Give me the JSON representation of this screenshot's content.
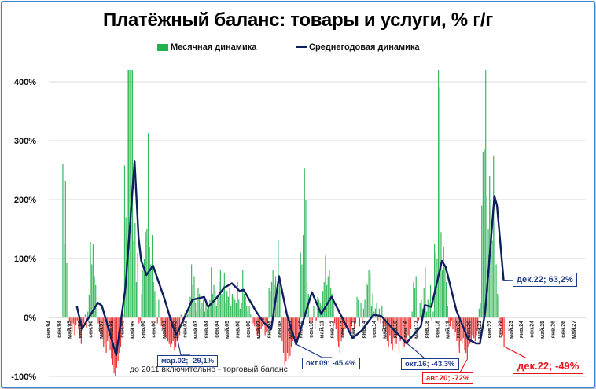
{
  "chart_data": {
    "type": "bar+line",
    "title": "Платёжный баланс: товары и услуги, % г/г",
    "ylim": [
      -100,
      420
    ],
    "yticks": [
      -100,
      0,
      100,
      200,
      300,
      400
    ],
    "ytick_labels": [
      "-100%",
      "0%",
      "100%",
      "200%",
      "300%",
      "400%"
    ],
    "grid": true,
    "legend_position": "top-center",
    "legend": [
      "Месячная динамика",
      "Среднегодовая динамика"
    ],
    "x_start": "1994-01",
    "x_end": "2027-06",
    "xtick_labels": [
      "янв.94",
      "сен.94",
      "май.95",
      "янв.96",
      "сен.96",
      "май.97",
      "янв.98",
      "сен.98",
      "май.99",
      "янв.00",
      "сен.00",
      "май.01",
      "янв.02",
      "сен.02",
      "май.03",
      "янв.04",
      "сен.04",
      "май.05",
      "янв.06",
      "сен.06",
      "май.07",
      "янв.08",
      "сен.08",
      "май.09",
      "янв.10",
      "сен.10",
      "май.11",
      "янв.12",
      "сен.12",
      "май.13",
      "янв.14",
      "сен.14",
      "май.15",
      "янв.16",
      "сен.16",
      "май.17",
      "янв.18",
      "сен.18",
      "май.19",
      "янв.20",
      "сен.20",
      "май.21",
      "янв.22",
      "сен.22",
      "май.23",
      "янв.24",
      "сен.24",
      "май.25",
      "янв.26",
      "сен.26",
      "май.27"
    ],
    "series": [
      {
        "name": "Месячная динамика",
        "kind": "bar",
        "color_pos": "#22b24c",
        "color_neg": "#f01c1c",
        "monthly_by_year": {
          "1994": [
            0,
            0,
            0,
            0,
            0,
            0,
            0,
            0,
            0,
            0,
            0,
            260
          ],
          "1995": [
            125,
            232,
            92,
            0,
            -8,
            -15,
            -25,
            -10,
            -30,
            -12,
            -5,
            -20
          ],
          "1996": [
            -35,
            -45,
            -20,
            -10,
            5,
            -18,
            10,
            38,
            128,
            90,
            125,
            70
          ],
          "1997": [
            55,
            15,
            -10,
            -25,
            -40,
            -30,
            -50,
            -45,
            -60,
            -40,
            -35,
            -55
          ],
          "1998": [
            -70,
            -80,
            -95,
            -100,
            -85,
            -75,
            -60,
            -50,
            -20,
            5,
            258,
            170
          ],
          "1999": [
            420,
            420,
            420,
            420,
            420,
            130,
            160,
            60,
            110,
            -10,
            -5,
            40
          ],
          "2000": [
            80,
            100,
            145,
            150,
            313,
            120,
            90,
            140,
            60,
            45,
            30,
            -10
          ],
          "2001": [
            30,
            -5,
            -15,
            -20,
            -25,
            -30,
            -35,
            -40,
            -45,
            -50,
            -45,
            -40
          ],
          "2002": [
            -55,
            -50,
            -40,
            -35,
            -30,
            5,
            -10,
            2,
            8,
            10,
            5,
            20
          ],
          "2003": [
            35,
            90,
            55,
            70,
            25,
            10,
            50,
            40,
            15,
            25,
            30,
            10
          ],
          "2004": [
            25,
            15,
            20,
            30,
            85,
            40,
            55,
            45,
            20,
            35,
            60,
            80
          ],
          "2005": [
            40,
            55,
            75,
            25,
            45,
            35,
            50,
            20,
            40,
            35,
            30,
            25
          ],
          "2006": [
            60,
            30,
            15,
            25,
            80,
            40,
            35,
            20,
            10,
            20,
            5,
            2
          ],
          "2007": [
            -10,
            -15,
            -20,
            -30,
            -25,
            -35,
            -20,
            -15,
            -5,
            -30,
            -25,
            -10
          ],
          "2008": [
            50,
            45,
            60,
            80,
            55,
            70,
            40,
            130,
            65,
            50,
            -40,
            -60
          ],
          "2009": [
            -80,
            -75,
            -60,
            -70,
            -65,
            -50,
            -40,
            -30,
            -35,
            -45,
            -30,
            -20
          ],
          "2010": [
            110,
            90,
            140,
            253,
            200,
            60,
            40,
            -10,
            -15,
            -5,
            20,
            -20
          ],
          "2011": [
            -5,
            35,
            30,
            25,
            20,
            45,
            60,
            105,
            55,
            70,
            80,
            50
          ],
          "2012": [
            40,
            30,
            -10,
            -20,
            -40,
            -50,
            -60,
            -40,
            -30,
            -35,
            -20,
            -15
          ],
          "2013": [
            -10,
            -25,
            -30,
            -15,
            -5,
            -20,
            -10,
            35,
            30,
            -15,
            25,
            -10
          ],
          "2014": [
            15,
            30,
            60,
            55,
            80,
            75,
            20,
            40,
            10,
            15,
            25,
            -5
          ],
          "2015": [
            15,
            -10,
            20,
            -20,
            -15,
            -25,
            -40,
            -50,
            -30,
            -45,
            -55,
            -35
          ],
          "2016": [
            -50,
            -45,
            -30,
            -60,
            -40,
            -35,
            -55,
            -50,
            -45,
            -40,
            -30,
            -35
          ],
          "2017": [
            -20,
            10,
            60,
            50,
            70,
            -10,
            -5,
            25,
            30,
            15,
            50,
            85
          ],
          "2018": [
            10,
            30,
            25,
            55,
            -5,
            10,
            125,
            110,
            100,
            420,
            390,
            145
          ],
          "2019": [
            80,
            120,
            90,
            60,
            20,
            -10,
            -15,
            -5,
            -20,
            -30,
            -25,
            -40
          ],
          "2020": [
            -50,
            -60,
            -40,
            -45,
            -35,
            -55,
            -60,
            -72,
            -50,
            -45,
            -40,
            -30
          ],
          "2021": [
            -35,
            -40,
            -30,
            -20,
            15,
            25,
            190,
            280,
            285,
            420,
            205,
            150
          ],
          "2022": [
            240,
            200,
            130,
            275,
            160,
            90,
            40,
            35,
            -15,
            -10,
            -30,
            -49
          ]
        }
      },
      {
        "name": "Среднегодовая динамика",
        "kind": "line",
        "color": "#0d1f5c",
        "points": [
          [
            "1995-11",
            19
          ],
          [
            "1996-03",
            -19
          ],
          [
            "1997-03",
            25
          ],
          [
            "1997-06",
            20
          ],
          [
            "1998-05",
            -64
          ],
          [
            "1998-12",
            50
          ],
          [
            "1999-07",
            265
          ],
          [
            "1999-10",
            136
          ],
          [
            "1999-12",
            96
          ],
          [
            "2000-04",
            72
          ],
          [
            "2000-09",
            88
          ],
          [
            "2001-06",
            30
          ],
          [
            "2001-12",
            -15
          ],
          [
            "2002-03",
            -29.1
          ],
          [
            "2003-03",
            30
          ],
          [
            "2003-12",
            35
          ],
          [
            "2004-03",
            18
          ],
          [
            "2004-09",
            32
          ],
          [
            "2005-03",
            50
          ],
          [
            "2005-09",
            58
          ],
          [
            "2006-03",
            45
          ],
          [
            "2006-06",
            47
          ],
          [
            "2007-03",
            12
          ],
          [
            "2007-09",
            -8
          ],
          [
            "2008-03",
            -20
          ],
          [
            "2008-09",
            70
          ],
          [
            "2009-03",
            5
          ],
          [
            "2009-10",
            -45.4
          ],
          [
            "2010-10",
            43
          ],
          [
            "2011-05",
            6
          ],
          [
            "2012-01",
            35
          ],
          [
            "2013-05",
            -35
          ],
          [
            "2013-12",
            -22
          ],
          [
            "2014-09",
            5
          ],
          [
            "2015-03",
            2
          ],
          [
            "2015-12",
            -20
          ],
          [
            "2016-10",
            -43.3
          ],
          [
            "2017-09",
            -15
          ],
          [
            "2017-12",
            21
          ],
          [
            "2018-05",
            18
          ],
          [
            "2019-01",
            96
          ],
          [
            "2019-04",
            85
          ],
          [
            "2019-12",
            12
          ],
          [
            "2020-09",
            -37
          ],
          [
            "2021-03",
            -44
          ],
          [
            "2021-06",
            -44
          ],
          [
            "2021-10",
            10
          ],
          [
            "2022-03",
            150
          ],
          [
            "2022-05",
            206
          ],
          [
            "2022-07",
            190
          ],
          [
            "2022-12",
            63.2
          ]
        ]
      }
    ],
    "annotations": [
      {
        "text": "мар.02; -29,1%",
        "color": "#1f3c88"
      },
      {
        "text": "окт.09; -45,4%",
        "color": "#1f3c88"
      },
      {
        "text": "окт.16; -43,3%",
        "color": "#1f3c88"
      },
      {
        "text": "авг.20; -72%",
        "color": "#e8141b"
      },
      {
        "text": "дек.22; -49%",
        "color": "#e8141b"
      },
      {
        "text": "дек.22; 63,2%",
        "color": "#1f3c88"
      }
    ],
    "note": "до 2011 включительно - торговый баланс"
  }
}
